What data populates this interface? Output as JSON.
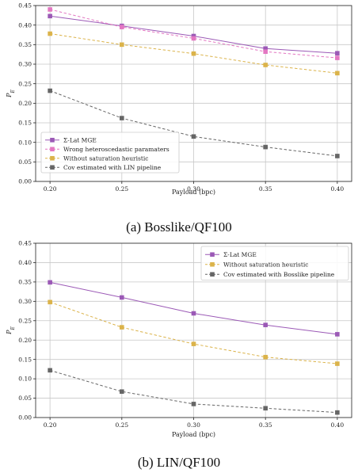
{
  "colors": {
    "sigma_lat_mge": "#9b59b6",
    "wrong_params": "#e377c2",
    "without_saturation": "#dbb34a",
    "cov_estimated": "#666666"
  },
  "chart_data": [
    {
      "type": "line",
      "caption": "(a) Bosslike/QF100",
      "xlabel": "Payload (bpc)",
      "ylabel": "P_E",
      "x": [
        0.2,
        0.25,
        0.3,
        0.35,
        0.4
      ],
      "xticks": [
        "0.20",
        "0.25",
        "0.30",
        "0.35",
        "0.40"
      ],
      "xlim": [
        0.19,
        0.41
      ],
      "ylim": [
        0.0,
        0.45
      ],
      "yticks": [
        "0.00",
        "0.05",
        "0.10",
        "0.15",
        "0.20",
        "0.25",
        "0.30",
        "0.35",
        "0.40",
        "0.45"
      ],
      "grid": true,
      "legend_position": "lower-left",
      "series": [
        {
          "name": "Σ-Lat MGE",
          "color": "#9b59b6",
          "dash": "solid",
          "values": [
            0.423,
            0.398,
            0.372,
            0.34,
            0.328
          ]
        },
        {
          "name": "Wrong heteroscedastic paramaters",
          "color": "#e377c2",
          "dash": "dashed",
          "values": [
            0.44,
            0.395,
            0.366,
            0.332,
            0.316
          ]
        },
        {
          "name": "Without saturation heuristic",
          "color": "#dbb34a",
          "dash": "dashed",
          "values": [
            0.378,
            0.35,
            0.327,
            0.298,
            0.277
          ]
        },
        {
          "name": "Cov estimated with LIN pipeline",
          "color": "#666666",
          "dash": "dashed",
          "values": [
            0.232,
            0.162,
            0.115,
            0.088,
            0.065
          ]
        }
      ]
    },
    {
      "type": "line",
      "caption": "(b) LIN/QF100",
      "xlabel": "Payload (bpc)",
      "ylabel": "P_E",
      "x": [
        0.2,
        0.25,
        0.3,
        0.35,
        0.4
      ],
      "xticks": [
        "0.20",
        "0.25",
        "0.30",
        "0.35",
        "0.40"
      ],
      "xlim": [
        0.19,
        0.41
      ],
      "ylim": [
        0.0,
        0.45
      ],
      "yticks": [
        "0.00",
        "0.05",
        "0.10",
        "0.15",
        "0.20",
        "0.25",
        "0.30",
        "0.35",
        "0.40",
        "0.45"
      ],
      "grid": true,
      "legend_position": "upper-right",
      "series": [
        {
          "name": "Σ-Lat MGE",
          "color": "#9b59b6",
          "dash": "solid",
          "values": [
            0.349,
            0.31,
            0.269,
            0.239,
            0.215
          ]
        },
        {
          "name": "Without saturation heuristic",
          "color": "#dbb34a",
          "dash": "dashed",
          "values": [
            0.298,
            0.233,
            0.19,
            0.156,
            0.139
          ]
        },
        {
          "name": "Cov estimated with Bosslike pipeline",
          "color": "#666666",
          "dash": "dashed",
          "values": [
            0.122,
            0.067,
            0.035,
            0.024,
            0.013
          ]
        }
      ]
    }
  ]
}
